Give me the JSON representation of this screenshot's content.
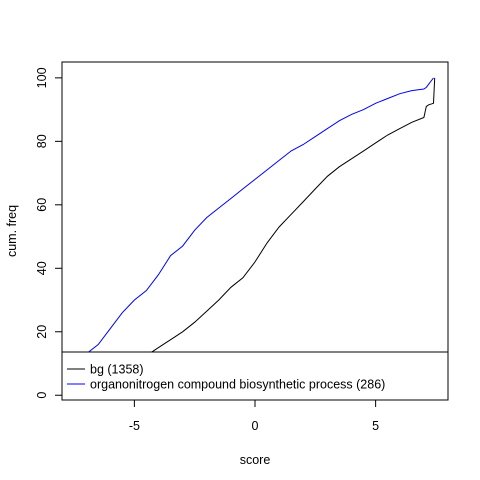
{
  "chart_data": {
    "type": "line",
    "xlabel": "score",
    "ylabel": "cum. freq",
    "xlim": [
      -8,
      8
    ],
    "ylim": [
      -1.5,
      105
    ],
    "xticks": [
      -5,
      0,
      5
    ],
    "yticks": [
      0,
      20,
      40,
      60,
      80,
      100
    ],
    "grid": false,
    "legend_position": "bottom",
    "series": [
      {
        "name": "bg (1358)",
        "color": "#000000",
        "x": [
          -8,
          -7.5,
          -7,
          -6.5,
          -6,
          -5.5,
          -5,
          -4.5,
          -4,
          -3.5,
          -3,
          -2.5,
          -2,
          -1.5,
          -1,
          -0.5,
          0,
          0.5,
          1,
          1.5,
          2,
          2.5,
          3,
          3.5,
          4,
          4.5,
          5,
          5.5,
          6,
          6.5,
          7,
          7.1,
          7.2,
          7.4,
          7.45
        ],
        "y": [
          0,
          1,
          2.5,
          4,
          6,
          8,
          10,
          12.5,
          15,
          17.5,
          20,
          23,
          26.5,
          30,
          34,
          37,
          42,
          48,
          53,
          57,
          61,
          65,
          69,
          72,
          74.5,
          77,
          79.5,
          82,
          84,
          86,
          87.5,
          91,
          91.5,
          92,
          100
        ]
      },
      {
        "name": "organonitrogen compound biosynthetic process (286)",
        "color": "#0000ff",
        "x": [
          -8,
          -7.5,
          -7,
          -6.5,
          -6,
          -5.5,
          -5,
          -4.5,
          -4,
          -3.5,
          -3,
          -2.5,
          -2,
          -1.5,
          -1,
          -0.5,
          0,
          0.5,
          1,
          1.5,
          2,
          2.5,
          3,
          3.5,
          4,
          4.5,
          5,
          5.5,
          6,
          6.5,
          7,
          7.1,
          7.2,
          7.3,
          7.4
        ],
        "y": [
          6,
          9,
          13,
          16,
          21,
          26,
          30,
          33,
          38,
          44,
          47,
          52,
          56,
          59,
          62,
          65,
          68,
          71,
          74,
          77,
          79,
          81.5,
          84,
          86.5,
          88.5,
          90,
          92,
          93.5,
          95,
          96,
          96.5,
          97,
          98,
          99,
          100
        ]
      }
    ]
  }
}
